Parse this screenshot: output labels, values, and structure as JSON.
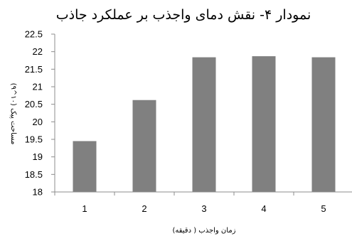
{
  "chart_data": {
    "type": "bar",
    "title": "نمودار ۴- نقش دمای واجذب  بر عملکرد جاذب",
    "xlabel": "زمان واجذب ( دقیقه)",
    "ylabel": "مساحت پیک (۱۰^۹)",
    "categories": [
      "1",
      "2",
      "3",
      "4",
      "5"
    ],
    "values": [
      19.45,
      20.62,
      21.84,
      21.87,
      21.84
    ],
    "ylim": [
      18,
      22.5
    ],
    "yticks": [
      "18",
      "18.5",
      "19",
      "19.5",
      "20",
      "20.5",
      "21",
      "21.5",
      "22",
      "22.5"
    ],
    "grid": false,
    "legend": "none",
    "bar_color": "#808080",
    "axis_color": "#8c8c8c"
  }
}
